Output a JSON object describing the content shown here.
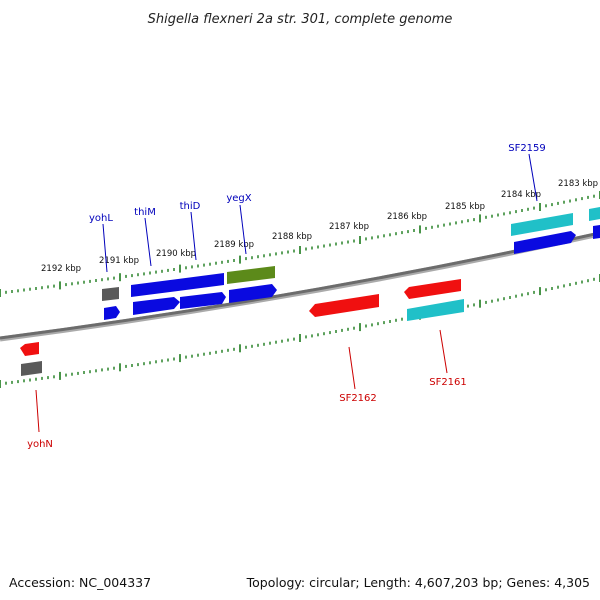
{
  "title": "Shigella flexneri 2a str. 301, complete genome",
  "footer": {
    "accession": "Accession: NC_004337",
    "summary": "Topology: circular; Length: 4,607,203 bp; Genes: 4,305"
  },
  "colors": {
    "backbone": "#777777",
    "tick": "#1a7a1a",
    "forward_label": "#0000bb",
    "reverse_label": "#cc0000",
    "blue": "#0a0ae0",
    "cyan": "#20c0c8",
    "red": "#f01010",
    "gray": "#666666",
    "olive": "#5c8a1a"
  },
  "scale_labels": [
    "2192 kbp",
    "2191 kbp",
    "2190 kbp",
    "2189 kbp",
    "2188 kbp",
    "2187 kbp",
    "2186 kbp",
    "2185 kbp",
    "2184 kbp",
    "2183 kbp"
  ],
  "gene_labels": {
    "forward": [
      "yohL",
      "thiM",
      "thiD",
      "yegX",
      "SF2159"
    ],
    "reverse": [
      "yohN",
      "SF2162",
      "SF2161"
    ]
  }
}
